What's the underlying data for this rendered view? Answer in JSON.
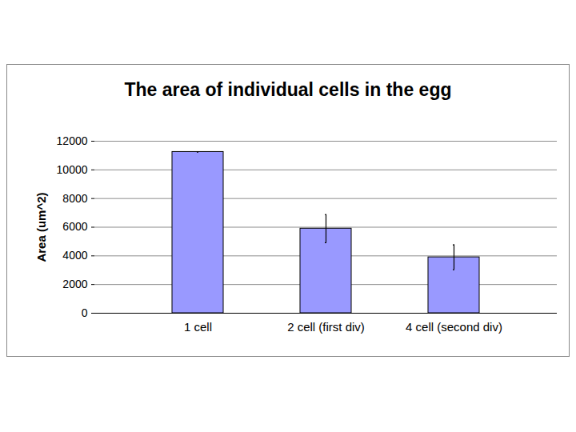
{
  "chart_data": {
    "type": "bar",
    "title": "The area of individual cells in the egg",
    "y_label": "Area (um^2)",
    "categories": [
      "1 cell",
      "2 cell (first div)",
      "4 cell (second div)"
    ],
    "values": [
      11250,
      5900,
      3900
    ],
    "errors": [
      0,
      980,
      870
    ],
    "color": "#9999ff",
    "ylim": [
      0,
      12000
    ],
    "yticks": [
      0,
      2000,
      4000,
      6000,
      8000,
      10000,
      12000
    ],
    "grid": true
  }
}
